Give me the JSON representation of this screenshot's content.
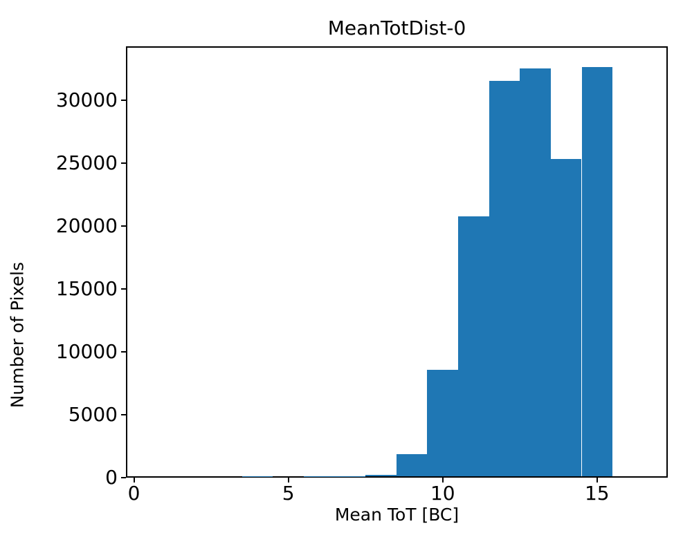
{
  "chart_data": {
    "type": "bar",
    "subtype": "histogram",
    "title": "MeanTotDist-0",
    "xlabel": "Mean ToT [BC]",
    "ylabel": "Number of Pixels",
    "bar_color": "#1f77b4",
    "axis_color": "#000000",
    "background_color": "#ffffff",
    "grid": false,
    "legend": false,
    "xlim": [
      -0.26,
      17.29
    ],
    "ylim": [
      0,
      34300
    ],
    "xticks": [
      0,
      5,
      10,
      15
    ],
    "yticks": [
      0,
      5000,
      10000,
      15000,
      20000,
      25000,
      30000
    ],
    "bin_edges": [
      0.5,
      1.5,
      2.5,
      3.5,
      4.5,
      5.5,
      6.5,
      7.5,
      8.5,
      9.5,
      10.5,
      11.5,
      12.5,
      13.5,
      14.5,
      15.5,
      16.5
    ],
    "counts": [
      0,
      0,
      0,
      100,
      0,
      90,
      110,
      220,
      1870,
      8570,
      20770,
      31540,
      32560,
      25330,
      32670,
      0
    ]
  }
}
